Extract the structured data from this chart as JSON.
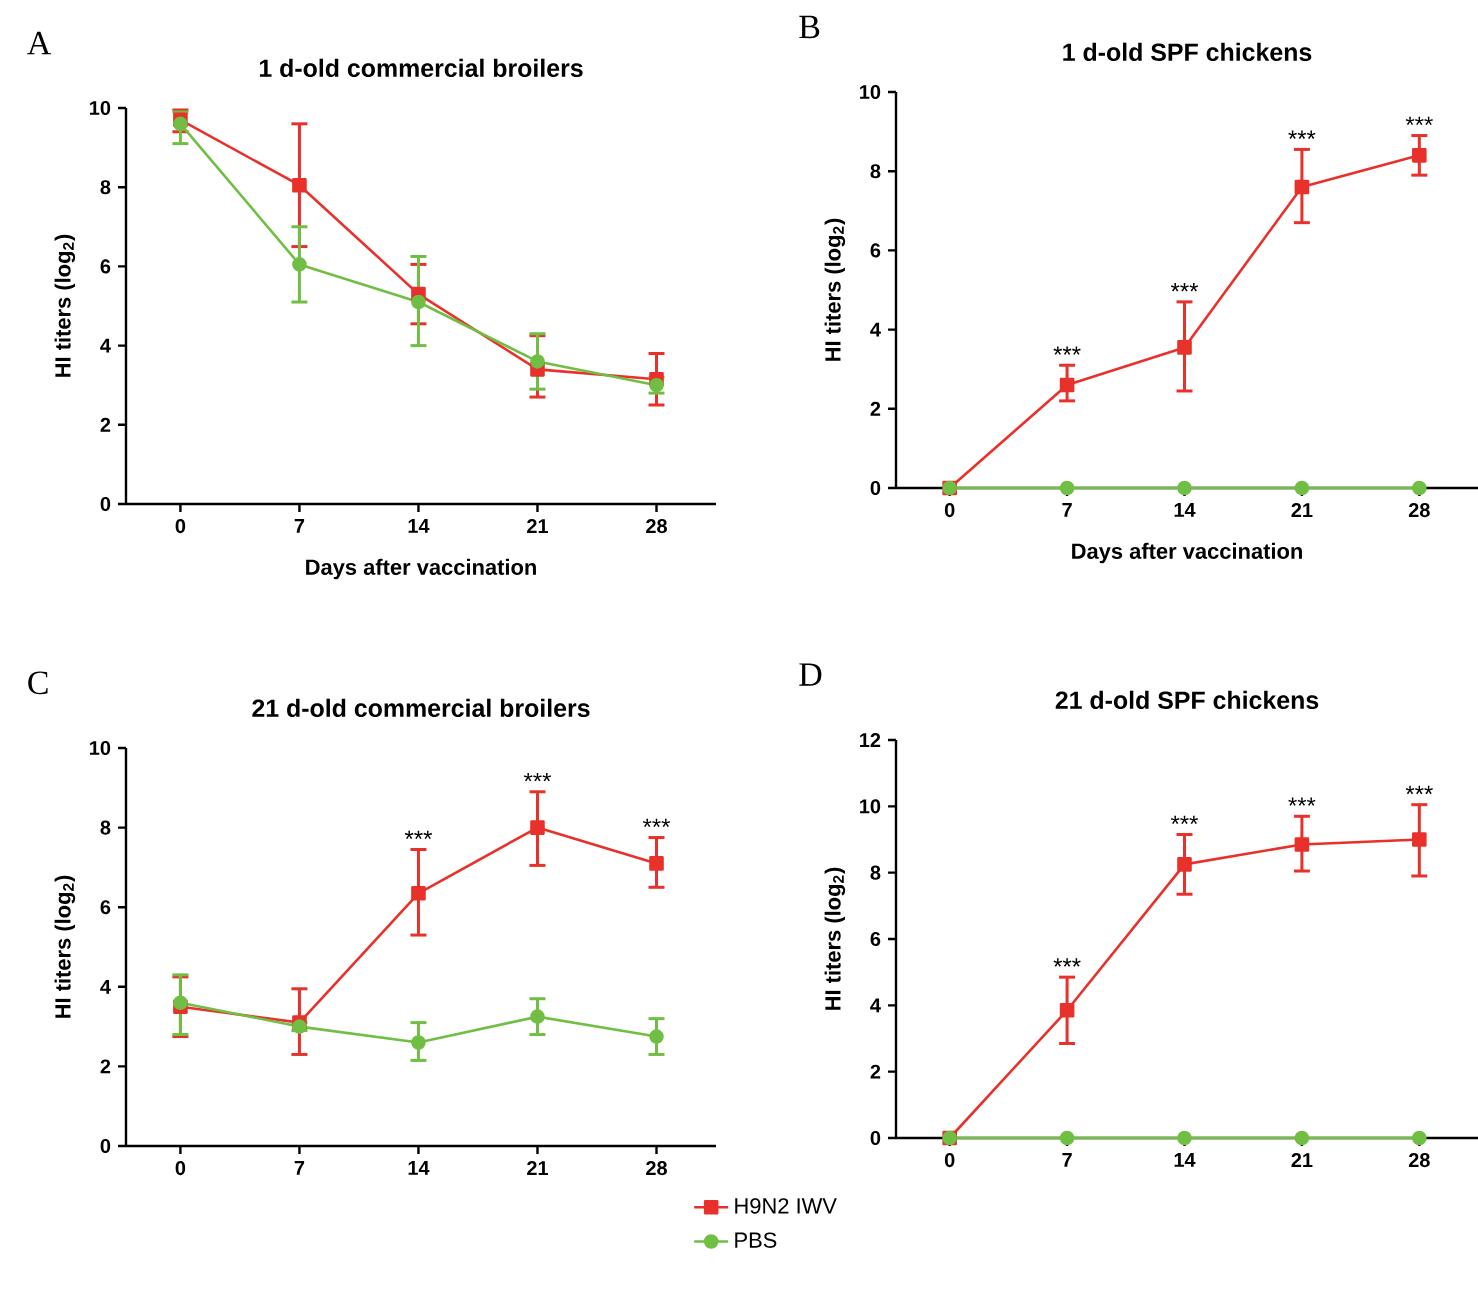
{
  "chart_data": [
    {
      "type": "line",
      "title": "1 d-old commercial broilers",
      "xlabel": "Days after vaccination",
      "ylabel": "HI titers (log$_{2}$)",
      "x": [
        0,
        7,
        14,
        21,
        28
      ],
      "xlim": [
        -3.2,
        31.5
      ],
      "xticks": [
        0,
        7,
        14,
        21,
        28
      ],
      "ylim": [
        0,
        10
      ],
      "yticks": [
        0,
        2,
        4,
        6,
        8,
        10
      ],
      "annotations": [
        "A"
      ],
      "series": [
        {
          "color": "#e8312a",
          "marker": "square",
          "values": [
            9.7,
            8.05,
            5.3,
            3.4,
            3.15
          ],
          "errors": [
            [
              9.4,
              9.95
            ],
            [
              6.5,
              9.6
            ],
            [
              4.55,
              6.05
            ],
            [
              2.7,
              4.25
            ],
            [
              2.5,
              3.8
            ]
          ]
        },
        {
          "color": "#70bf44",
          "marker": "circle",
          "values": [
            9.6,
            6.05,
            5.1,
            3.6,
            3.0
          ],
          "errors": [
            [
              9.1,
              9.9
            ],
            [
              5.1,
              7.0
            ],
            [
              4.0,
              6.25
            ],
            [
              2.9,
              4.3
            ],
            [
              2.8,
              3.2
            ]
          ]
        }
      ]
    },
    {
      "type": "line",
      "title": "1 d-old SPF chickens",
      "xlabel": "Days after vaccination",
      "ylabel": "HI titers (log$_{2}$)",
      "x": [
        0,
        7,
        14,
        21,
        28
      ],
      "xlim": [
        -3.2,
        31.5
      ],
      "xticks": [
        0,
        7,
        14,
        21,
        28
      ],
      "ylim": [
        0,
        10
      ],
      "yticks": [
        0,
        2,
        4,
        6,
        8,
        10
      ],
      "annotations": [
        "B",
        {
          "text": "***",
          "x": 7,
          "y": 2.6
        },
        {
          "text": "***",
          "x": 14,
          "y": 3.55
        },
        {
          "text": "***",
          "x": 21,
          "y": 7.6
        },
        {
          "text": "***",
          "x": 28,
          "y": 8.4
        }
      ],
      "series": [
        {
          "color": "#e8312a",
          "marker": "square",
          "values": [
            0,
            2.6,
            3.55,
            7.6,
            8.4
          ],
          "errors": [
            null,
            [
              2.2,
              3.1
            ],
            [
              2.45,
              4.7
            ],
            [
              6.7,
              8.55
            ],
            [
              7.9,
              8.9
            ]
          ]
        },
        {
          "color": "#70bf44",
          "marker": "circle",
          "values": [
            0,
            0,
            0,
            0,
            0
          ]
        }
      ]
    },
    {
      "type": "line",
      "title": "21 d-old commercial broilers",
      "ylabel": "HI titers (log$_{2}$)",
      "x": [
        0,
        7,
        14,
        21,
        28
      ],
      "xlim": [
        -3.2,
        31.5
      ],
      "xticks": [
        0,
        7,
        14,
        21,
        28
      ],
      "ylim": [
        0,
        10
      ],
      "yticks": [
        0,
        2,
        4,
        6,
        8,
        10
      ],
      "annotations": [
        "C",
        {
          "text": "***",
          "x": 14,
          "y": 6.35
        },
        {
          "text": "***",
          "x": 21,
          "y": 8.0
        },
        {
          "text": "***",
          "x": 28,
          "y": 7.1
        }
      ],
      "series": [
        {
          "color": "#e8312a",
          "marker": "square",
          "values": [
            3.5,
            3.1,
            6.35,
            8.0,
            7.1
          ],
          "errors": [
            [
              2.75,
              4.25
            ],
            [
              2.3,
              3.95
            ],
            [
              5.3,
              7.45
            ],
            [
              7.05,
              8.9
            ],
            [
              6.5,
              7.75
            ]
          ]
        },
        {
          "color": "#70bf44",
          "marker": "circle",
          "values": [
            3.6,
            3.0,
            2.6,
            3.25,
            2.75
          ],
          "errors": [
            [
              2.8,
              4.3
            ],
            [
              2.9,
              3.1
            ],
            [
              2.15,
              3.1
            ],
            [
              2.8,
              3.7
            ],
            [
              2.3,
              3.2
            ]
          ]
        }
      ]
    },
    {
      "type": "line",
      "title": "21 d-old SPF chickens",
      "ylabel": "HI titers (log$_{2}$)",
      "x": [
        0,
        7,
        14,
        21,
        28
      ],
      "xlim": [
        -3.2,
        31.5
      ],
      "xticks": [
        0,
        7,
        14,
        21,
        28
      ],
      "ylim": [
        0,
        12
      ],
      "yticks": [
        0,
        2,
        4,
        6,
        8,
        10,
        12
      ],
      "legend": "bottom left",
      "annotations": [
        "D",
        {
          "text": "***",
          "x": 7,
          "y": 3.85
        },
        {
          "text": "***",
          "x": 14,
          "y": 8.25
        },
        {
          "text": "***",
          "x": 21,
          "y": 8.85
        },
        {
          "text": "***",
          "x": 28,
          "y": 9.0
        }
      ],
      "series": [
        {
          "name": "H9N2 IWV",
          "color": "#e8312a",
          "marker": "square",
          "values": [
            0,
            3.85,
            8.25,
            8.85,
            9.0
          ],
          "errors": [
            null,
            [
              2.85,
              4.85
            ],
            [
              7.35,
              9.15
            ],
            [
              8.05,
              9.7
            ],
            [
              7.9,
              10.05
            ]
          ]
        },
        {
          "name": "PBS",
          "color": "#70bf44",
          "marker": "circle",
          "values": [
            0,
            0,
            0,
            0,
            0
          ]
        }
      ]
    }
  ]
}
